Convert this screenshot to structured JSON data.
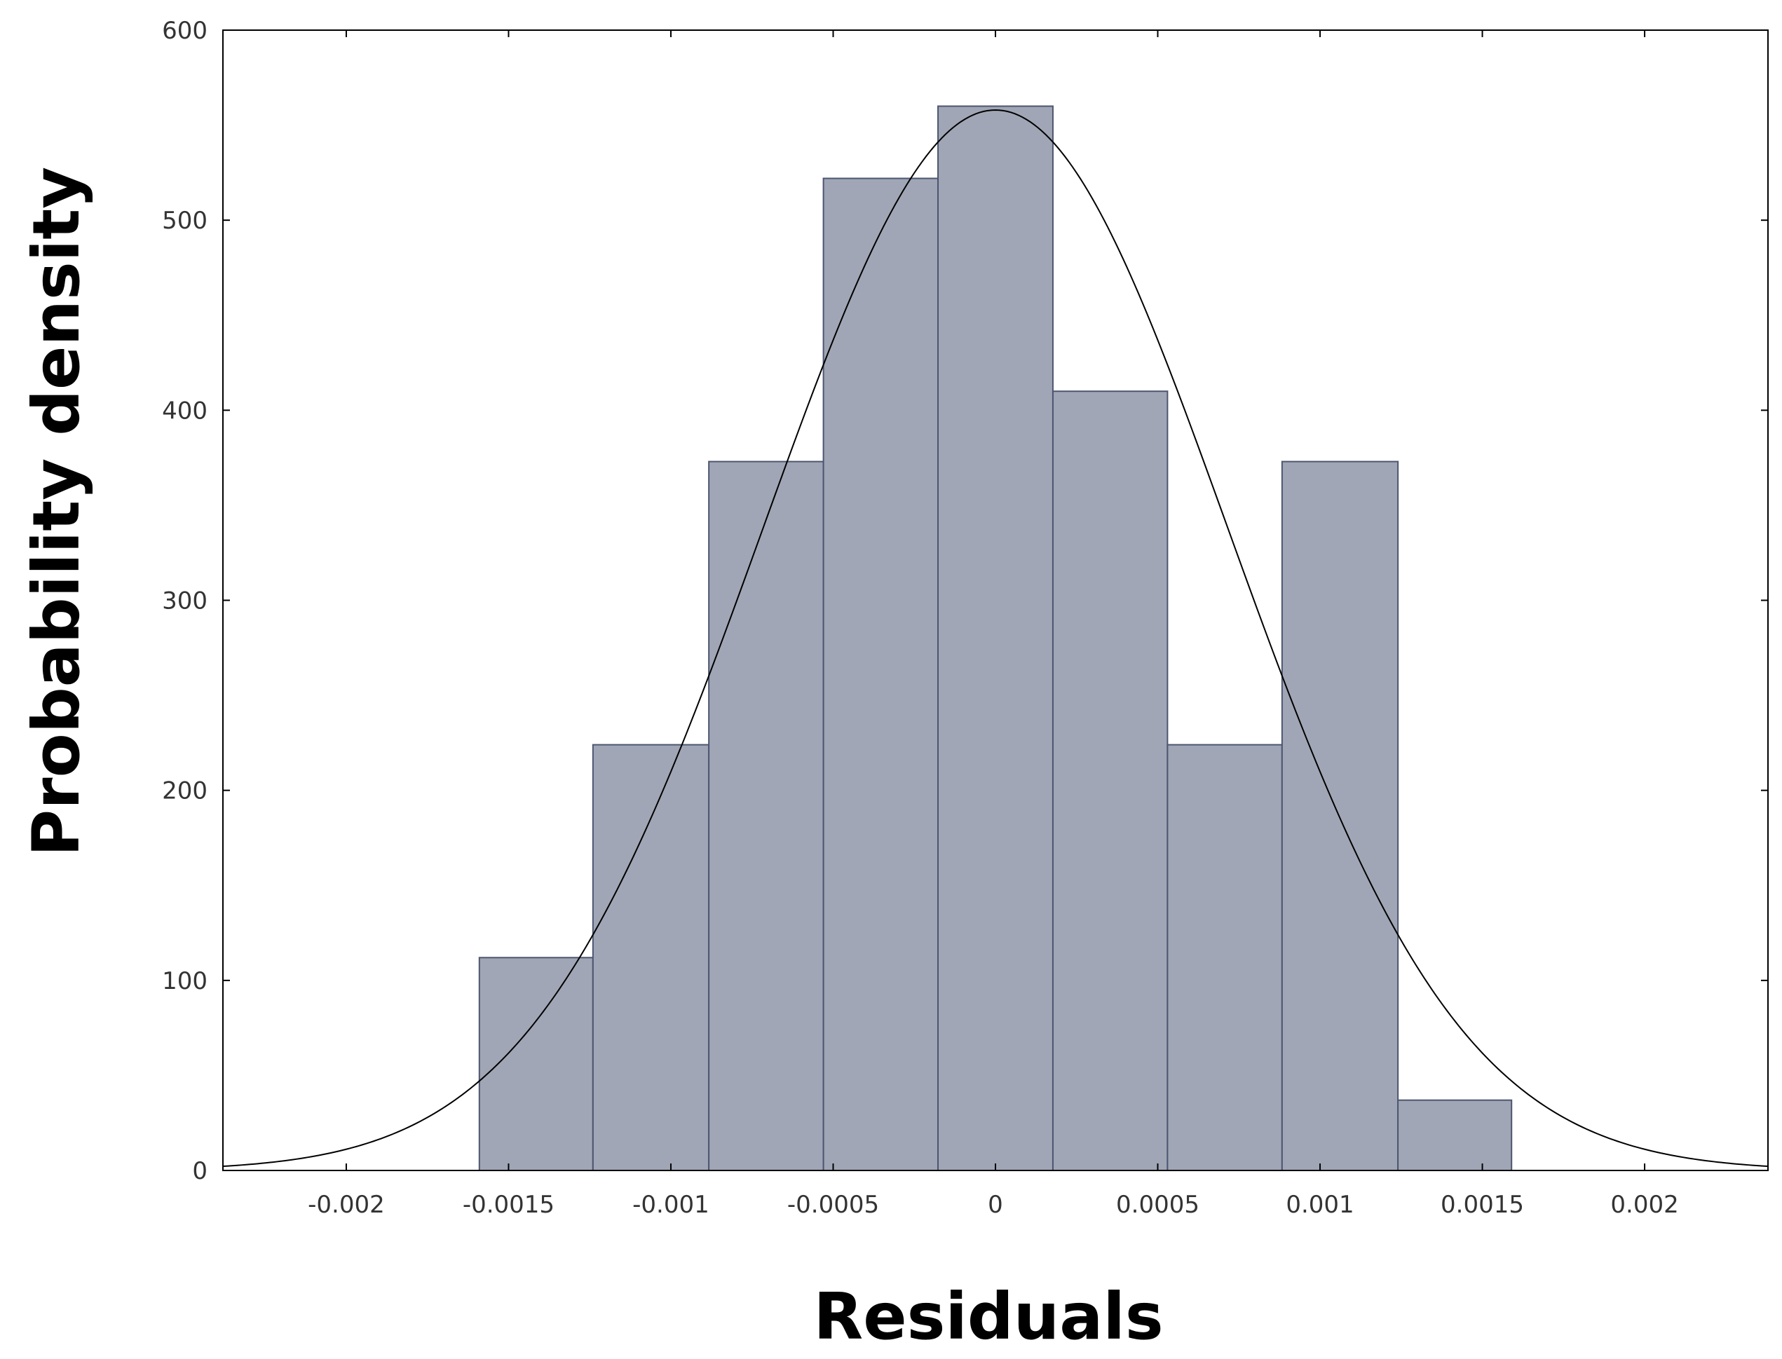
{
  "chart_data": {
    "type": "bar",
    "title": "",
    "xlabel": "Residuals",
    "ylabel": "Probability density",
    "xlim": [
      -0.00238,
      0.00238
    ],
    "ylim": [
      0,
      600
    ],
    "grid": false,
    "x_ticks": [
      {
        "value": -0.002,
        "label": "-0.002"
      },
      {
        "value": -0.0015,
        "label": "-0.0015"
      },
      {
        "value": -0.001,
        "label": "-0.001"
      },
      {
        "value": -0.0005,
        "label": "-0.0005"
      },
      {
        "value": 0,
        "label": "0"
      },
      {
        "value": 0.0005,
        "label": "0.0005"
      },
      {
        "value": 0.001,
        "label": "0.001"
      },
      {
        "value": 0.0015,
        "label": "0.0015"
      },
      {
        "value": 0.002,
        "label": "0.002"
      }
    ],
    "y_ticks": [
      {
        "value": 0,
        "label": "0"
      },
      {
        "value": 100,
        "label": "100"
      },
      {
        "value": 200,
        "label": "200"
      },
      {
        "value": 300,
        "label": "300"
      },
      {
        "value": 400,
        "label": "400"
      },
      {
        "value": 500,
        "label": "500"
      },
      {
        "value": 600,
        "label": "600"
      }
    ],
    "bins": [
      {
        "x0": -0.00159,
        "x1": -0.00124,
        "value": 112
      },
      {
        "x0": -0.00124,
        "x1": -0.000883,
        "value": 224
      },
      {
        "x0": -0.000883,
        "x1": -0.00053,
        "value": 373
      },
      {
        "x0": -0.00053,
        "x1": -0.000177,
        "value": 522
      },
      {
        "x0": -0.000177,
        "x1": 0.000177,
        "value": 560
      },
      {
        "x0": 0.000177,
        "x1": 0.00053,
        "value": 410
      },
      {
        "x0": 0.00053,
        "x1": 0.000883,
        "value": 224
      },
      {
        "x0": 0.000883,
        "x1": 0.00124,
        "value": 373
      },
      {
        "x0": 0.00124,
        "x1": 0.00159,
        "value": 37
      }
    ],
    "curve": {
      "type": "normal",
      "mean": 0,
      "sd": 0.000715
    },
    "colors": {
      "bar_fill": "#a0a6b5",
      "bar_stroke": "#4d5670",
      "curve": "#000000",
      "axis": "#000000"
    }
  }
}
